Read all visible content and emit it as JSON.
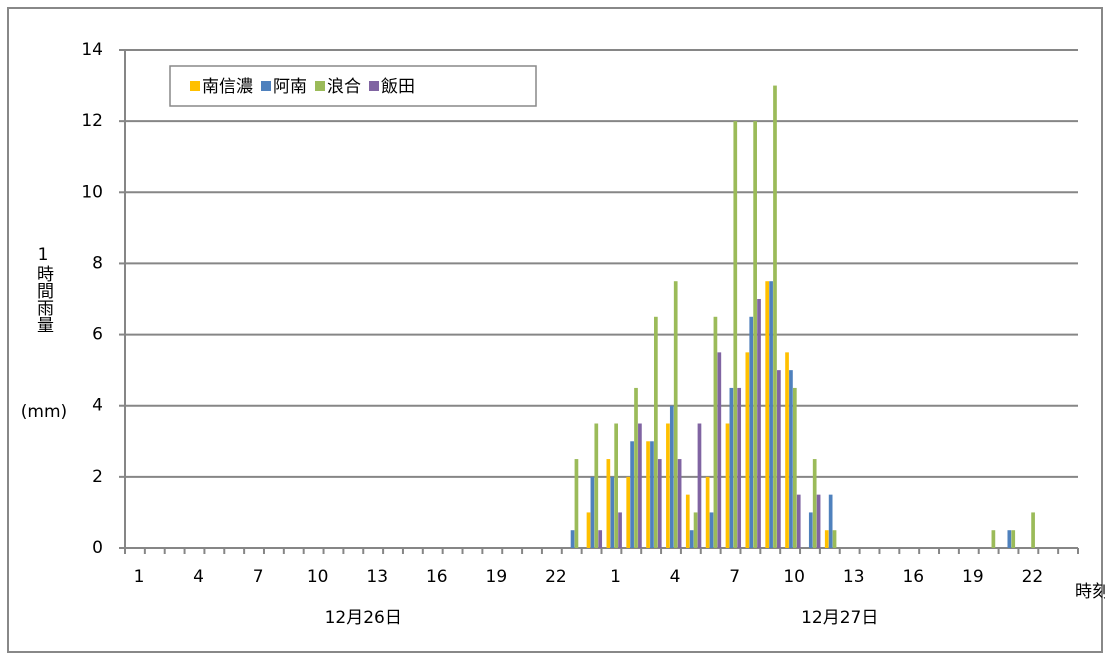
{
  "chart_data": {
    "type": "bar",
    "y_label": "1時間雨量",
    "y_unit": "(mm)",
    "x_label": "時刻",
    "date_labels": [
      "12月26日",
      "12月27日"
    ],
    "categories": [
      "1",
      null,
      null,
      "4",
      null,
      null,
      "7",
      null,
      null,
      "10",
      null,
      null,
      "13",
      null,
      null,
      "16",
      null,
      null,
      "19",
      null,
      null,
      "22",
      null,
      null,
      "1",
      null,
      null,
      "4",
      null,
      null,
      "7",
      null,
      null,
      "10",
      null,
      null,
      "13",
      null,
      null,
      "16",
      null,
      null,
      "19",
      null,
      null,
      "22",
      null,
      null
    ],
    "series": [
      {
        "name": "南信濃",
        "color": "#ffc000",
        "values": [
          0,
          0,
          0,
          0,
          0,
          0,
          0,
          0,
          0,
          0,
          0,
          0,
          0,
          0,
          0,
          0,
          0,
          0,
          0,
          0,
          0,
          0,
          0,
          1,
          2.5,
          2,
          3,
          3.5,
          1.5,
          2,
          3.5,
          5.5,
          7.5,
          5.5,
          0,
          0.5,
          0,
          0,
          0,
          0,
          0,
          0,
          0,
          0,
          0,
          0,
          0,
          0
        ]
      },
      {
        "name": "阿南",
        "color": "#4f81bd",
        "values": [
          0,
          0,
          0,
          0,
          0,
          0,
          0,
          0,
          0,
          0,
          0,
          0,
          0,
          0,
          0,
          0,
          0,
          0,
          0,
          0,
          0,
          0,
          0.5,
          2,
          2,
          3,
          3,
          4,
          0.5,
          1,
          4.5,
          6.5,
          7.5,
          5,
          1,
          1.5,
          0,
          0,
          0,
          0,
          0,
          0,
          0,
          0,
          0.5,
          0,
          0,
          0
        ]
      },
      {
        "name": "浪合",
        "color": "#9bbb59",
        "values": [
          0,
          0,
          0,
          0,
          0,
          0,
          0,
          0,
          0,
          0,
          0,
          0,
          0,
          0,
          0,
          0,
          0,
          0,
          0,
          0,
          0,
          0,
          2.5,
          3.5,
          3.5,
          4.5,
          6.5,
          7.5,
          1,
          6.5,
          12,
          12,
          13,
          4.5,
          2.5,
          0.5,
          0,
          0,
          0,
          0,
          0,
          0,
          0,
          0.5,
          0.5,
          1,
          0,
          0
        ]
      },
      {
        "name": "飯田",
        "color": "#8064a2",
        "values": [
          0,
          0,
          0,
          0,
          0,
          0,
          0,
          0,
          0,
          0,
          0,
          0,
          0,
          0,
          0,
          0,
          0,
          0,
          0,
          0,
          0,
          0,
          0,
          0.5,
          1,
          3.5,
          2.5,
          2.5,
          3.5,
          5.5,
          4.5,
          7,
          5,
          1.5,
          1.5,
          0,
          0,
          0,
          0,
          0,
          0,
          0,
          0,
          0,
          0,
          0,
          0,
          0
        ]
      }
    ],
    "ylim": [
      0,
      14
    ],
    "yticks": [
      0,
      2,
      4,
      6,
      8,
      10,
      12,
      14
    ],
    "grid": true,
    "legend": "top-left"
  }
}
